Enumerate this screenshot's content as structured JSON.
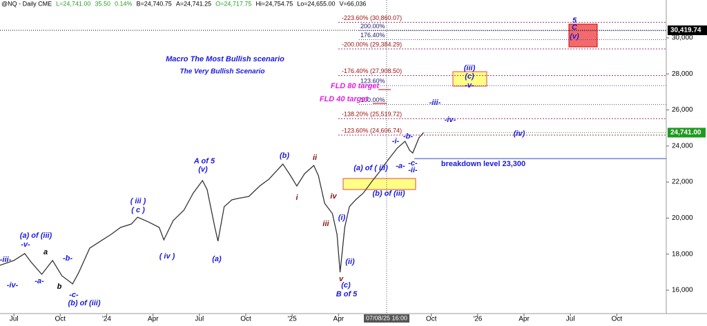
{
  "chart_data": {
    "type": "line",
    "title": "Macro The Most Bullish scenario",
    "subtitle": "The Very Bullish Scenario",
    "header": [
      "@NQ - Daily  CME",
      "L=24,741.00",
      "35.50",
      "0.14%",
      "B=24,740.75",
      "A=24,741.25",
      "O=24,717.75",
      "Hi=24,754.75",
      "Lo=24,655.00",
      "V=66,036"
    ],
    "x": [
      -0.9,
      0,
      0.7,
      1.1,
      1.8,
      2.5,
      3.1,
      3.8,
      4.2,
      4.9,
      5.6,
      6.3,
      6.9,
      7.6,
      8.0,
      8.7,
      9.4,
      9.7,
      10.3,
      11.0,
      11.6,
      12.2,
      12.5,
      13.0,
      13.2,
      13.6,
      14.1,
      14.5,
      15.2,
      15.9,
      16.5,
      17.4,
      17.9,
      18.3,
      18.8,
      19.4,
      19.7,
      20.1,
      20.6,
      20.9,
      21.1,
      21.4,
      21.7,
      22.1,
      22.6,
      23.2,
      23.7,
      24.1,
      24.8,
      25.3,
      25.6,
      25.8,
      26.2,
      26.5
    ],
    "values": [
      17380,
      17650,
      18030,
      17570,
      16880,
      17650,
      16800,
      16350,
      16990,
      18330,
      18720,
      19100,
      19480,
      19670,
      20050,
      19790,
      19480,
      18790,
      19860,
      20440,
      21390,
      22080,
      21580,
      19480,
      18720,
      20630,
      21010,
      21090,
      21200,
      21780,
      22160,
      23000,
      22350,
      21780,
      22460,
      22920,
      22350,
      20820,
      20250,
      19100,
      16990,
      19480,
      20630,
      21010,
      21390,
      22080,
      22620,
      23110,
      23880,
      24260,
      23760,
      23610,
      24450,
      24741
    ],
    "color": "#333333",
    "xlim": [
      -0.9,
      42.2
    ],
    "ylim": [
      14700,
      32100
    ],
    "xticks": [
      {
        "value": 0,
        "label": "Jul"
      },
      {
        "value": 3,
        "label": "Oct"
      },
      {
        "value": 6,
        "label": "'24"
      },
      {
        "value": 9,
        "label": "Apr"
      },
      {
        "value": 12,
        "label": "Jul"
      },
      {
        "value": 15,
        "label": "Oct"
      },
      {
        "value": 18,
        "label": "'25"
      },
      {
        "value": 21,
        "label": "Apr"
      },
      {
        "value": 27,
        "label": "Oct"
      },
      {
        "value": 30,
        "label": "'26"
      },
      {
        "value": 33,
        "label": "Apr"
      },
      {
        "value": 36,
        "label": "Jul"
      },
      {
        "value": 39,
        "label": "Oct"
      }
    ],
    "yticks": [
      {
        "value": 16000,
        "label": "16,000"
      },
      {
        "value": 18000,
        "label": "18,000"
      },
      {
        "value": 20000,
        "label": "20,000"
      },
      {
        "value": 22000,
        "label": "22,000"
      },
      {
        "value": 24000,
        "label": "24,000"
      },
      {
        "value": 26000,
        "label": "26,000"
      },
      {
        "value": 28000,
        "label": "28,000"
      },
      {
        "value": 30000,
        "label": "30,000"
      }
    ],
    "cursor_label": "07/08/25 16:00",
    "last_price": {
      "value": 24741,
      "label": "24,741.00"
    },
    "marker_price": {
      "value": 30419.74,
      "label": "30,419.74"
    },
    "breakdown": {
      "value": 23300,
      "label": "breakdown level 23,300"
    },
    "fib_levels": [
      {
        "value": 30860.07,
        "label": "-223.60% (30,860.07)"
      },
      {
        "value": 29384.29,
        "label": "-200.00% (29,384.29)"
      },
      {
        "value": 27908.5,
        "label": "-176.40% (27,908.50)"
      },
      {
        "value": 25519.72,
        "label": "-138.20% (25,519.72)"
      },
      {
        "value": 24606.74,
        "label": "-123.60% (24,606.74)"
      }
    ],
    "targets": [
      {
        "value": 30400,
        "label": "200.00%"
      },
      {
        "value": 29900,
        "label": "176.40%"
      },
      {
        "value": 27350,
        "label": "123.60%"
      },
      {
        "value": 26300,
        "label": "100.00%"
      }
    ],
    "annotations": [
      "-iii-",
      "(a) of (iii)",
      "-v-",
      "a",
      "-b-",
      "-a-",
      "b",
      "-iv-",
      "-c-",
      "(b) of (iii)",
      "( iii )",
      "( c )",
      "( iv )",
      "A of 5",
      "(v)",
      "(a)",
      "(b)",
      "ii",
      "i",
      "iv",
      "iii",
      "v",
      "(c)",
      "B of 5",
      "(i)",
      "(ii)",
      "(a) of ( iii)",
      "(b) of (iii)",
      "-i-",
      "-b-",
      "-a-",
      "-c-",
      "-ii-",
      "-iii-",
      "-iv-",
      "(iv)",
      "(iii)",
      "(c)",
      "-v-",
      "5",
      "C",
      "(v)",
      "FLD 80 target",
      "FLD 40 target"
    ]
  }
}
